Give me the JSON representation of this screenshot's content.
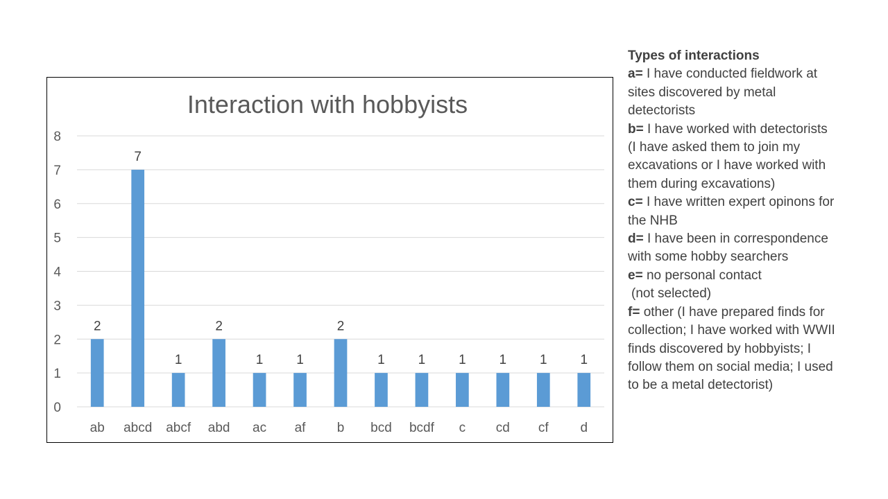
{
  "chart_data": {
    "type": "bar",
    "title": "Interaction with hobbyists",
    "categories": [
      "ab",
      "abcd",
      "abcf",
      "abd",
      "ac",
      "af",
      "b",
      "bcd",
      "bcdf",
      "c",
      "cd",
      "cf",
      "d"
    ],
    "values": [
      2,
      7,
      1,
      2,
      1,
      1,
      2,
      1,
      1,
      1,
      1,
      1,
      1
    ],
    "xlabel": "",
    "ylabel": "",
    "ylim": [
      0,
      8
    ],
    "yticks": [
      0,
      1,
      2,
      3,
      4,
      5,
      6,
      7,
      8
    ],
    "grid": true,
    "data_labels": true,
    "bar_color": "#5b9bd5"
  },
  "legend": {
    "heading": "Types of interactions",
    "entries": [
      {
        "key": "a=",
        "text": " I have conducted fieldwork at sites discovered by metal detectorists"
      },
      {
        "key": "b=",
        "text": " I have worked with detectorists (I have asked them to join my excavations or I have worked with them during excavations)"
      },
      {
        "key": "c=",
        "text": " I have written expert opinons for the NHB"
      },
      {
        "key": "d=",
        "text": " I have been in correspondence with some hobby searchers"
      },
      {
        "key": "e=",
        "text": " no personal contact"
      },
      {
        "key": "f=",
        "text": " other (I have prepared finds for collection; I have worked with WWII finds discovered by hobbyists; I follow them on social media; I used to be a metal detectorist)"
      }
    ],
    "e_note": "(not selected)"
  }
}
